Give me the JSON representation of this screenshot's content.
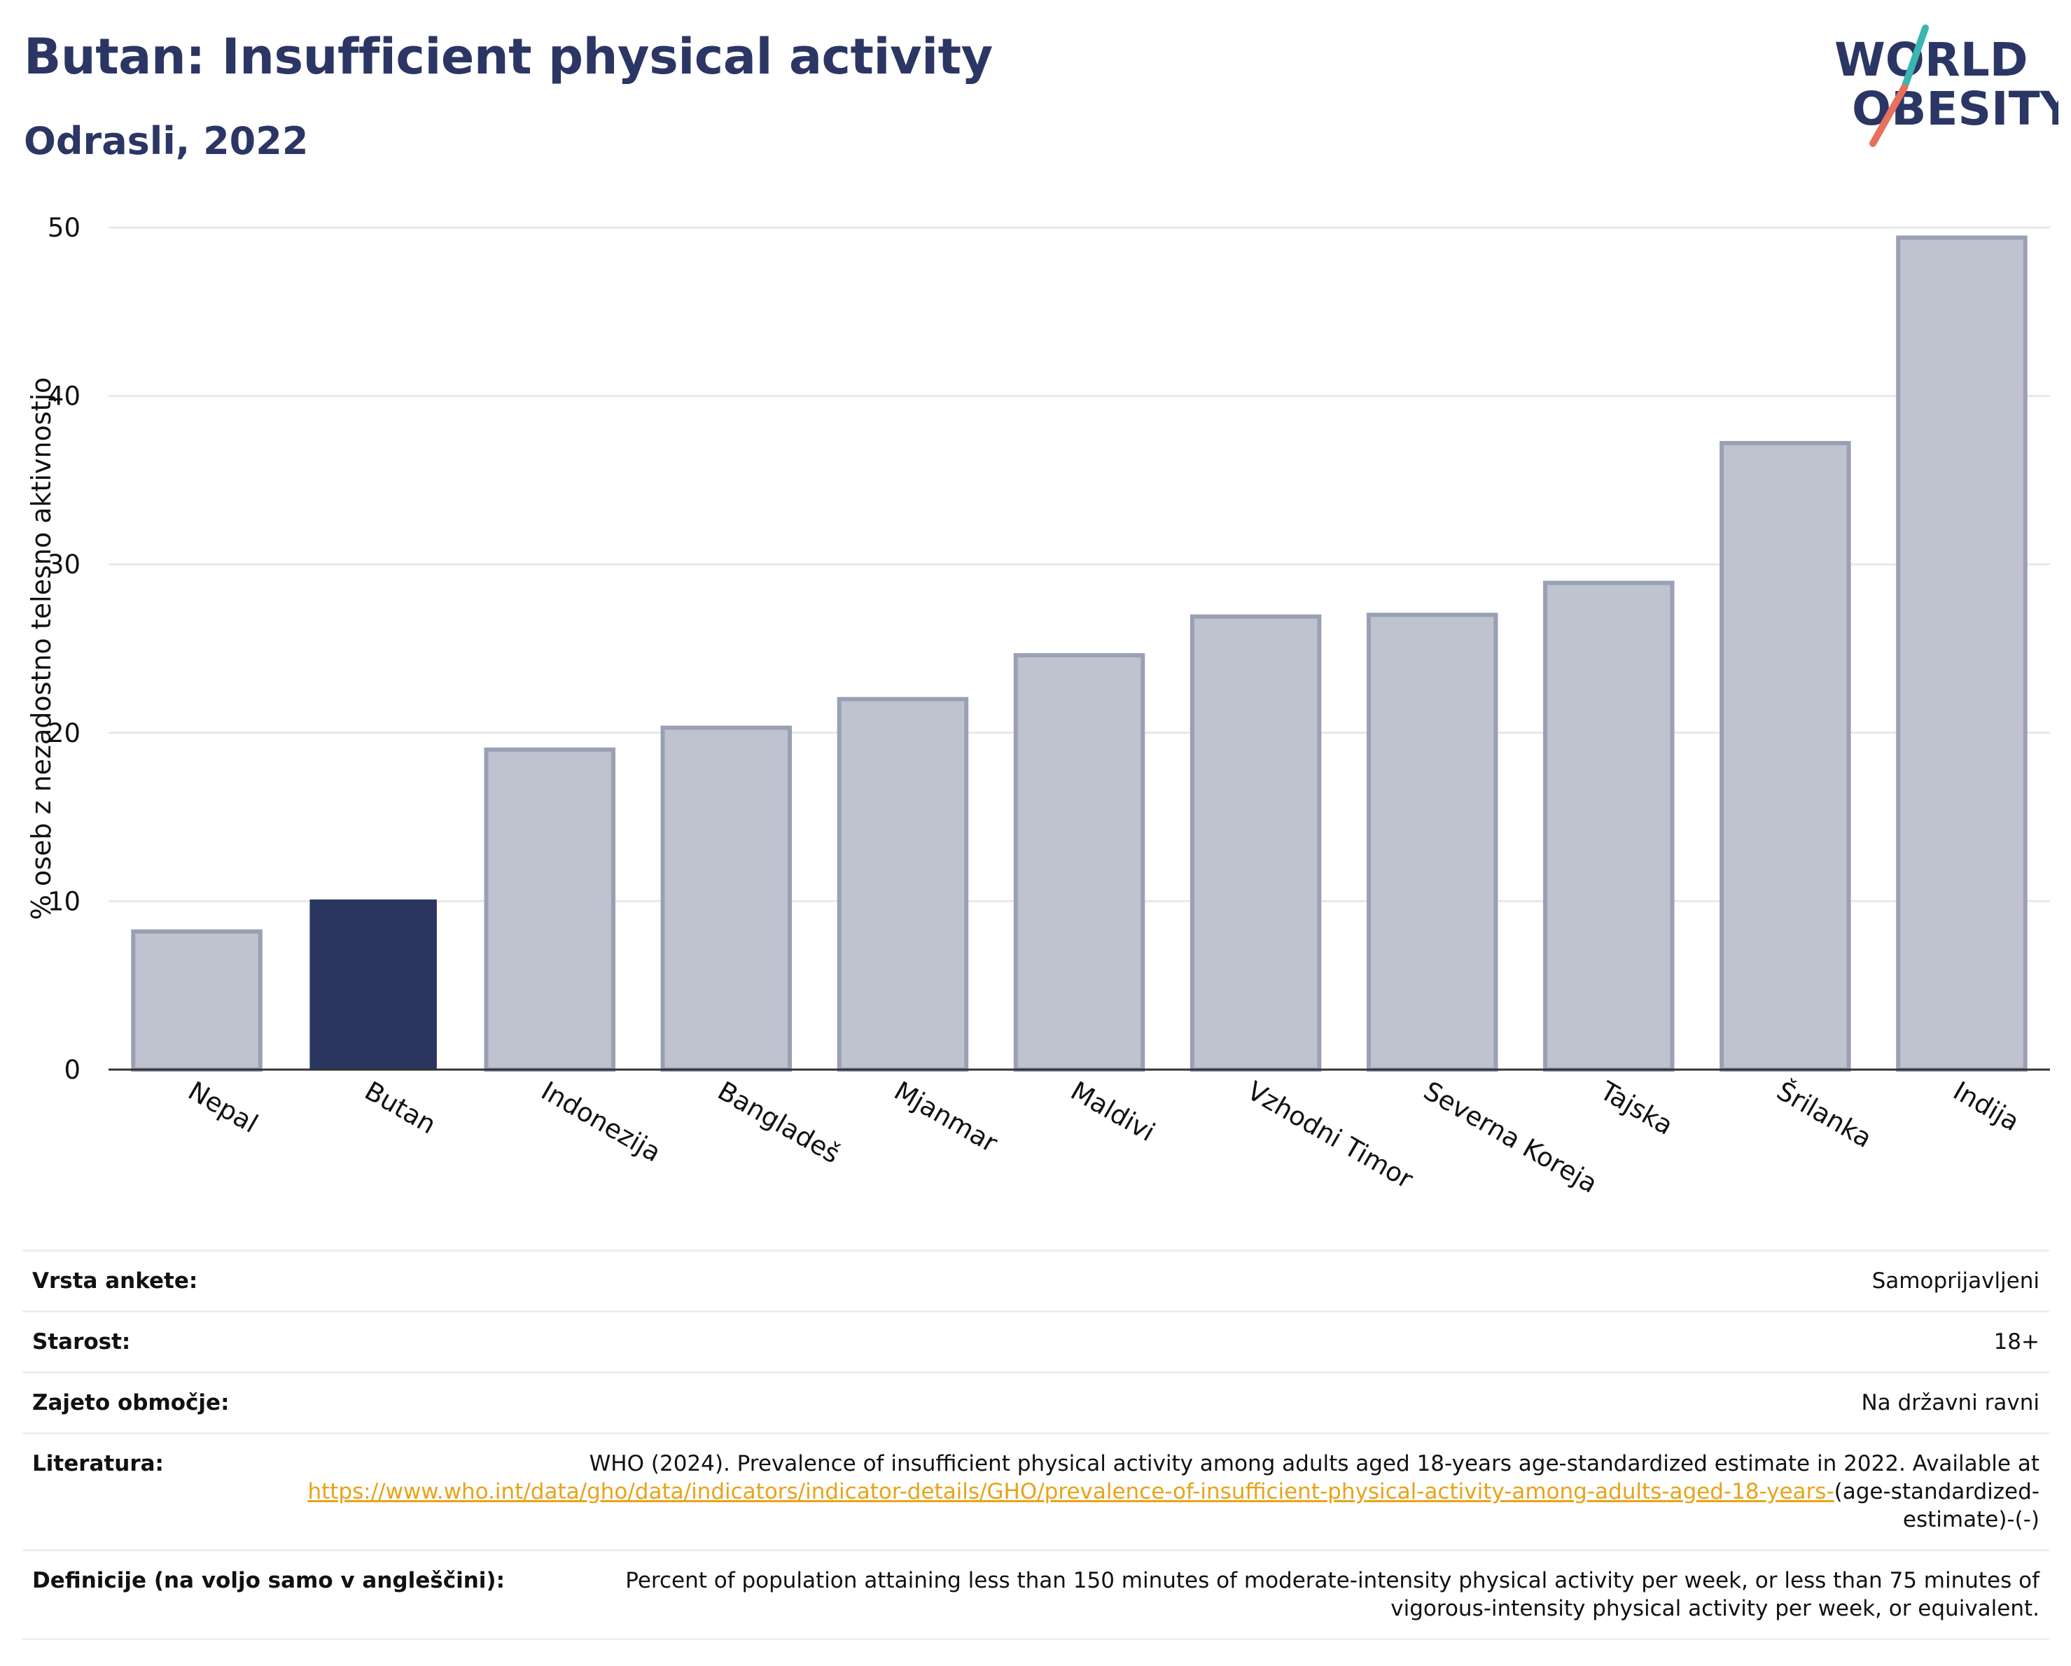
{
  "header": {
    "title": "Butan: Insufficient physical activity",
    "subtitle": "Odrasli, 2022"
  },
  "logo": {
    "line1": "WORLD",
    "line2": "OBESITY",
    "icon": "world-obesity-logo"
  },
  "colors": {
    "highlight": "#2b3660",
    "bar": "#bfc3cf",
    "bar_edge": "#9aa0b4",
    "grid": "#e6e8ee",
    "title": "#2b3664",
    "link": "#e8a317"
  },
  "chart_data": {
    "type": "bar",
    "title": "Butan: Insufficient physical activity",
    "subtitle": "Odrasli, 2022",
    "ylabel": "% oseb z nezadostno telesno aktivnostjo",
    "xlabel": "",
    "ylim": [
      0,
      50
    ],
    "yticks": [
      0,
      10,
      20,
      30,
      40,
      50
    ],
    "grid": true,
    "highlight": "Butan",
    "categories": [
      "Nepal",
      "Butan",
      "Indonezija",
      "Bangladeš",
      "Mjanmar",
      "Maldivi",
      "Vzhodni Timor",
      "Severna Koreja",
      "Tajska",
      "Šrilanka",
      "Indija"
    ],
    "values": [
      8.2,
      10.1,
      19.0,
      20.3,
      22.0,
      24.6,
      26.9,
      27.0,
      28.9,
      37.2,
      49.4
    ]
  },
  "info": {
    "rows": [
      {
        "label": "Vrsta ankete:",
        "value": "Samoprijavljeni"
      },
      {
        "label": "Starost:",
        "value": "18+"
      },
      {
        "label": "Zajeto območje:",
        "value": "Na državni ravni"
      },
      {
        "label": "Literatura:",
        "value": "WHO (2024). Prevalence of insufficient physical activity among adults aged 18-years age-standardized estimate in 2022. Available at ",
        "link": "https://www.who.int/data/gho/data/indicators/indicator-details/GHO/prevalence-of-insufficient-physical-activity-among-adults-aged-18-years-",
        "suffix": "(age-standardized-estimate)-(-)"
      },
      {
        "label": "Definicije (na voljo samo v angleščini):",
        "value": "Percent of population attaining less than 150 minutes of moderate-intensity physical activity per week, or less than 75 minutes of vigorous-intensity physical activity per week, or equivalent."
      }
    ]
  }
}
